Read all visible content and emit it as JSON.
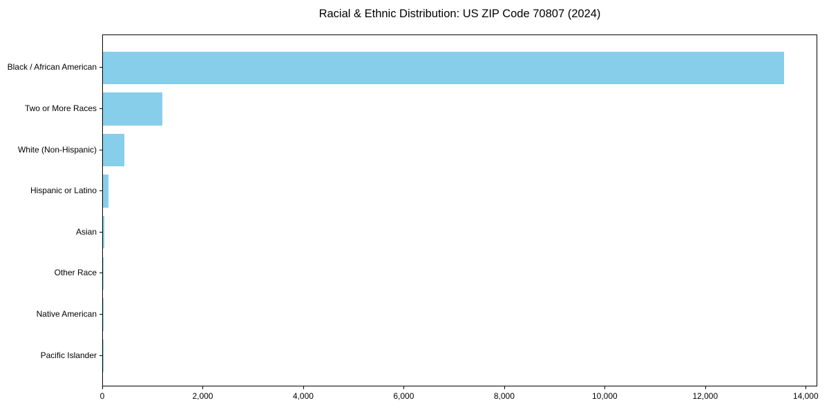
{
  "chart_data": {
    "type": "bar",
    "orientation": "horizontal",
    "title": "Racial & Ethnic Distribution: US ZIP Code 70807 (2024)",
    "categories": [
      "Black / African American",
      "Two or More Races",
      "White (Non-Hispanic)",
      "Hispanic or Latino",
      "Asian",
      "Other Race",
      "Native American",
      "Pacific Islander"
    ],
    "values": [
      13560,
      1180,
      420,
      115,
      25,
      15,
      8,
      4
    ],
    "xlabel": "",
    "ylabel": "",
    "xlim": [
      0,
      14230
    ],
    "xticks": [
      0,
      2000,
      4000,
      6000,
      8000,
      10000,
      12000,
      14000
    ],
    "xtick_labels": [
      "0",
      "2,000",
      "4,000",
      "6,000",
      "8,000",
      "10,000",
      "12,000",
      "14,000"
    ],
    "bar_color": "#87CEEB",
    "axis_color": "#000000",
    "text_color": "#000000",
    "background_color": "#FFFFFF",
    "grid": false,
    "legend": null
  }
}
